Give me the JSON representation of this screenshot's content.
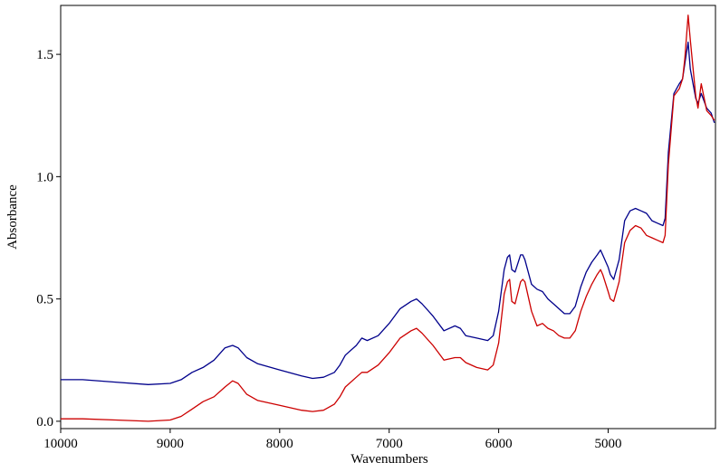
{
  "chart_data": {
    "type": "line",
    "xlabel": "Wavenumbers",
    "ylabel": "Absorbance",
    "xlim": [
      10000,
      4020
    ],
    "ylim": [
      -0.03,
      1.7
    ],
    "x_reversed": true,
    "grid": false,
    "x_ticks": [
      10000,
      9000,
      8000,
      7000,
      6000,
      5000
    ],
    "x_tick_labels": [
      "10000",
      "9000",
      "8000",
      "7000",
      "6000",
      "5000"
    ],
    "y_ticks": [
      0.0,
      0.5,
      1.0,
      1.5
    ],
    "y_tick_labels": [
      "0.0",
      "0.5",
      "1.0",
      "1.5"
    ],
    "series": [
      {
        "color": "#00008b",
        "x": [
          10000,
          9800,
          9500,
          9200,
          9000,
          8900,
          8800,
          8700,
          8600,
          8500,
          8430,
          8380,
          8300,
          8200,
          8000,
          7800,
          7700,
          7600,
          7500,
          7450,
          7400,
          7300,
          7250,
          7200,
          7100,
          7000,
          6900,
          6800,
          6750,
          6700,
          6600,
          6500,
          6400,
          6350,
          6300,
          6200,
          6100,
          6050,
          6000,
          5950,
          5920,
          5900,
          5880,
          5850,
          5800,
          5780,
          5760,
          5700,
          5650,
          5600,
          5550,
          5500,
          5450,
          5400,
          5350,
          5300,
          5250,
          5200,
          5150,
          5100,
          5070,
          5050,
          5000,
          4980,
          4950,
          4900,
          4850,
          4800,
          4750,
          4700,
          4650,
          4600,
          4550,
          4500,
          4480,
          4450,
          4400,
          4350,
          4320,
          4300,
          4270,
          4250,
          4200,
          4180,
          4150,
          4100,
          4060,
          4030
        ],
        "y": [
          0.17,
          0.17,
          0.16,
          0.15,
          0.155,
          0.17,
          0.2,
          0.22,
          0.25,
          0.3,
          0.31,
          0.3,
          0.26,
          0.235,
          0.21,
          0.185,
          0.175,
          0.18,
          0.2,
          0.23,
          0.27,
          0.31,
          0.34,
          0.33,
          0.35,
          0.4,
          0.46,
          0.49,
          0.5,
          0.48,
          0.43,
          0.37,
          0.39,
          0.38,
          0.35,
          0.34,
          0.33,
          0.35,
          0.45,
          0.62,
          0.67,
          0.68,
          0.62,
          0.61,
          0.68,
          0.68,
          0.66,
          0.56,
          0.54,
          0.53,
          0.5,
          0.48,
          0.46,
          0.44,
          0.44,
          0.47,
          0.55,
          0.61,
          0.65,
          0.68,
          0.7,
          0.68,
          0.63,
          0.6,
          0.58,
          0.66,
          0.82,
          0.86,
          0.87,
          0.86,
          0.85,
          0.82,
          0.81,
          0.8,
          0.83,
          1.1,
          1.34,
          1.38,
          1.4,
          1.46,
          1.55,
          1.44,
          1.32,
          1.3,
          1.34,
          1.28,
          1.26,
          1.22
        ]
      },
      {
        "color": "#cc0000",
        "x": [
          10000,
          9800,
          9500,
          9200,
          9000,
          8900,
          8800,
          8700,
          8600,
          8500,
          8430,
          8380,
          8300,
          8200,
          8000,
          7800,
          7700,
          7600,
          7500,
          7450,
          7400,
          7300,
          7250,
          7200,
          7100,
          7000,
          6900,
          6800,
          6750,
          6700,
          6600,
          6500,
          6400,
          6350,
          6300,
          6200,
          6100,
          6050,
          6000,
          5950,
          5920,
          5900,
          5880,
          5850,
          5800,
          5780,
          5760,
          5700,
          5650,
          5600,
          5550,
          5500,
          5450,
          5400,
          5350,
          5300,
          5250,
          5200,
          5150,
          5100,
          5070,
          5050,
          5000,
          4980,
          4950,
          4900,
          4850,
          4800,
          4750,
          4700,
          4650,
          4600,
          4550,
          4500,
          4480,
          4450,
          4400,
          4350,
          4320,
          4300,
          4270,
          4250,
          4200,
          4180,
          4150,
          4100,
          4060,
          4030
        ],
        "y": [
          0.01,
          0.01,
          0.005,
          0.0,
          0.005,
          0.02,
          0.05,
          0.08,
          0.1,
          0.14,
          0.165,
          0.155,
          0.11,
          0.085,
          0.065,
          0.045,
          0.04,
          0.045,
          0.07,
          0.1,
          0.14,
          0.18,
          0.2,
          0.2,
          0.23,
          0.28,
          0.34,
          0.37,
          0.38,
          0.36,
          0.31,
          0.25,
          0.26,
          0.26,
          0.24,
          0.22,
          0.21,
          0.23,
          0.32,
          0.52,
          0.57,
          0.58,
          0.49,
          0.48,
          0.57,
          0.58,
          0.57,
          0.45,
          0.39,
          0.4,
          0.38,
          0.37,
          0.35,
          0.34,
          0.34,
          0.37,
          0.45,
          0.51,
          0.56,
          0.6,
          0.62,
          0.6,
          0.53,
          0.5,
          0.49,
          0.57,
          0.73,
          0.78,
          0.8,
          0.79,
          0.76,
          0.75,
          0.74,
          0.73,
          0.76,
          1.05,
          1.33,
          1.36,
          1.4,
          1.48,
          1.66,
          1.56,
          1.33,
          1.28,
          1.38,
          1.27,
          1.25,
          1.23
        ]
      }
    ]
  }
}
